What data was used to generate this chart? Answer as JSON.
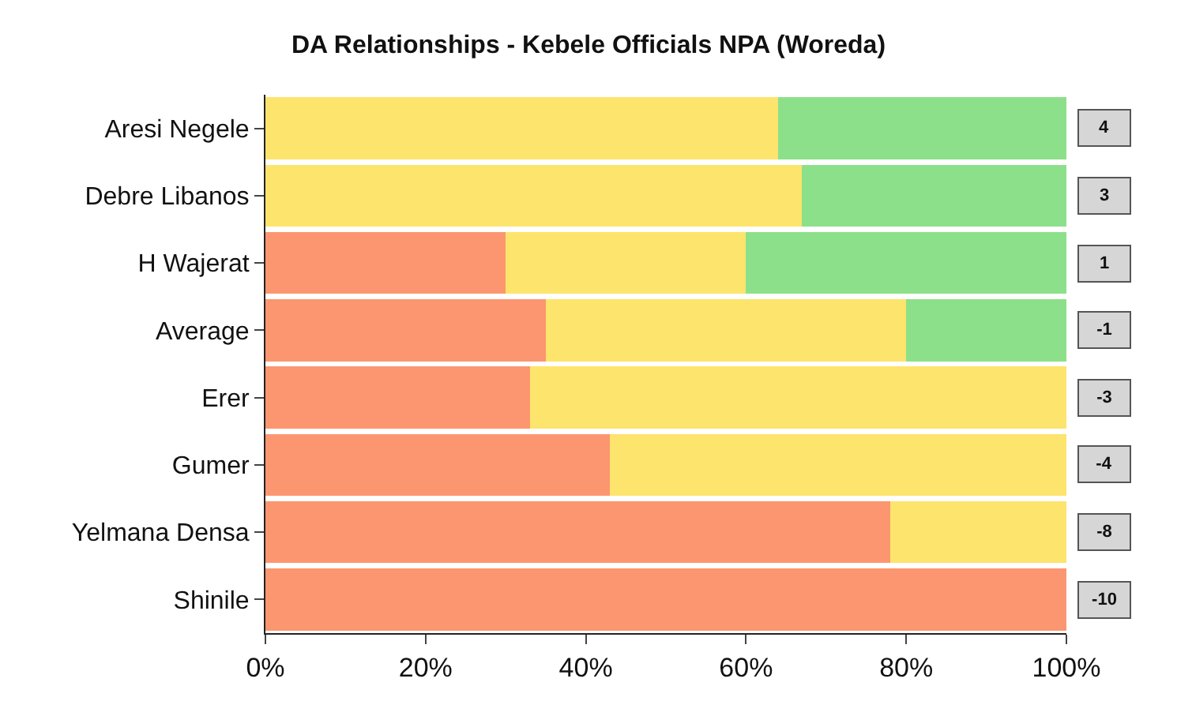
{
  "chart_data": {
    "type": "bar",
    "orientation": "horizontal",
    "stacked": true,
    "title": "DA Relationships - Kebele Officials NPA (Woreda)",
    "categories": [
      "Aresi Negele",
      "Debre Libanos",
      "H Wajerat",
      "Average",
      "Erer",
      "Gumer",
      "Yelmana Densa",
      "Shinile"
    ],
    "series": [
      {
        "color": "#fc9670",
        "values": [
          0,
          0,
          30,
          35,
          33,
          43,
          78,
          100
        ]
      },
      {
        "color": "#fde46c",
        "values": [
          64,
          67,
          30,
          45,
          67,
          57,
          22,
          0
        ]
      },
      {
        "color": "#8de08a",
        "values": [
          36,
          33,
          40,
          20,
          0,
          0,
          0,
          0
        ]
      }
    ],
    "xlim": [
      0,
      100
    ],
    "xticks": [
      {
        "value": 0,
        "label": "0%"
      },
      {
        "value": 20,
        "label": "20%"
      },
      {
        "value": 40,
        "label": "40%"
      },
      {
        "value": 60,
        "label": "60%"
      },
      {
        "value": 80,
        "label": "80%"
      },
      {
        "value": 100,
        "label": "100%"
      }
    ],
    "legend": false,
    "annotations": [
      "4",
      "3",
      "1",
      "-1",
      "-3",
      "-4",
      "-8",
      "-10"
    ]
  }
}
